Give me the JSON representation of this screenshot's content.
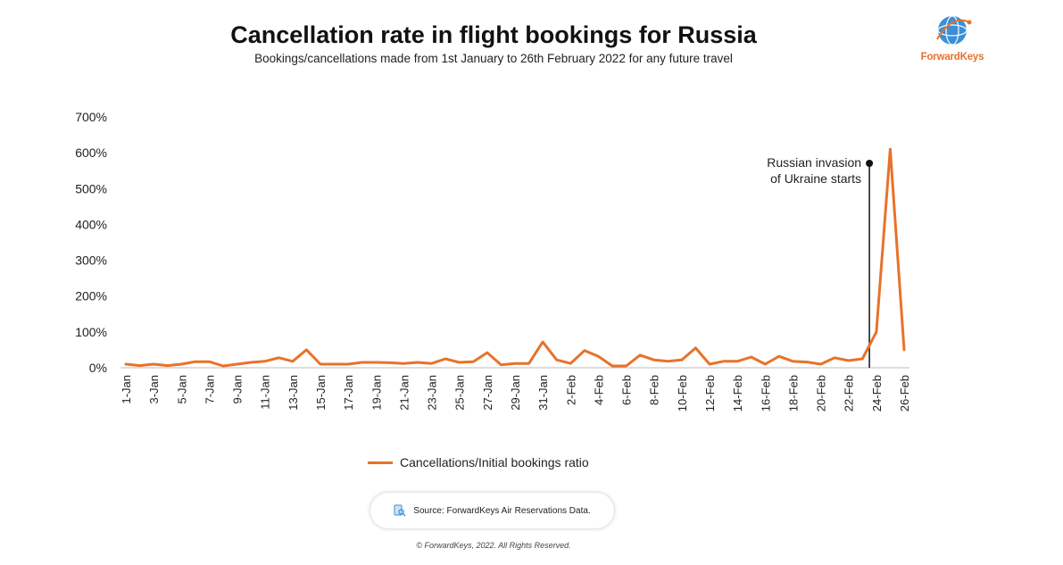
{
  "header": {
    "title": "Cancellation rate in flight bookings for Russia",
    "subtitle": "Bookings/cancellations made from 1st January to 26th February 2022 for any future travel"
  },
  "logo": {
    "text": "ForwardKeys"
  },
  "chart_data": {
    "type": "line",
    "x": [
      "1-Jan",
      "2-Jan",
      "3-Jan",
      "4-Jan",
      "5-Jan",
      "6-Jan",
      "7-Jan",
      "8-Jan",
      "9-Jan",
      "10-Jan",
      "11-Jan",
      "12-Jan",
      "13-Jan",
      "14-Jan",
      "15-Jan",
      "16-Jan",
      "17-Jan",
      "18-Jan",
      "19-Jan",
      "20-Jan",
      "21-Jan",
      "22-Jan",
      "23-Jan",
      "24-Jan",
      "25-Jan",
      "26-Jan",
      "27-Jan",
      "28-Jan",
      "29-Jan",
      "30-Jan",
      "31-Jan",
      "1-Feb",
      "2-Feb",
      "3-Feb",
      "4-Feb",
      "5-Feb",
      "6-Feb",
      "7-Feb",
      "8-Feb",
      "9-Feb",
      "10-Feb",
      "11-Feb",
      "12-Feb",
      "13-Feb",
      "14-Feb",
      "15-Feb",
      "16-Feb",
      "17-Feb",
      "18-Feb",
      "19-Feb",
      "20-Feb",
      "21-Feb",
      "22-Feb",
      "23-Feb",
      "24-Feb",
      "25-Feb",
      "26-Feb"
    ],
    "x_tick_labels": [
      "1-Jan",
      "3-Jan",
      "5-Jan",
      "7-Jan",
      "9-Jan",
      "11-Jan",
      "13-Jan",
      "15-Jan",
      "17-Jan",
      "19-Jan",
      "21-Jan",
      "23-Jan",
      "25-Jan",
      "27-Jan",
      "29-Jan",
      "31-Jan",
      "2-Feb",
      "4-Feb",
      "6-Feb",
      "8-Feb",
      "10-Feb",
      "12-Feb",
      "14-Feb",
      "16-Feb",
      "18-Feb",
      "20-Feb",
      "22-Feb",
      "24-Feb",
      "26-Feb"
    ],
    "series": [
      {
        "name": "Cancellations/Initial bookings ratio",
        "color": "#e8722a",
        "values": [
          10,
          6,
          10,
          6,
          10,
          17,
          17,
          5,
          10,
          15,
          18,
          28,
          18,
          50,
          10,
          10,
          10,
          15,
          15,
          14,
          12,
          15,
          12,
          25,
          15,
          17,
          42,
          8,
          12,
          12,
          72,
          22,
          12,
          48,
          32,
          5,
          5,
          35,
          22,
          18,
          22,
          55,
          10,
          18,
          18,
          30,
          10,
          32,
          18,
          16,
          10,
          28,
          20,
          25,
          100,
          610,
          50
        ]
      }
    ],
    "ylim": [
      0,
      700
    ],
    "y_ticks": [
      0,
      100,
      200,
      300,
      400,
      500,
      600,
      700
    ],
    "y_tick_labels": [
      "0%",
      "100%",
      "200%",
      "300%",
      "400%",
      "500%",
      "600%",
      "700%"
    ],
    "annotation": {
      "text_lines": [
        "Russian invasion",
        "of Ukraine starts"
      ],
      "x": "24-Feb"
    },
    "grid": false,
    "legend_position": "bottom"
  },
  "source": {
    "text": "Source: ForwardKeys Air Reservations Data."
  },
  "copyright": "© ForwardKeys, 2022. All Rights Reserved."
}
